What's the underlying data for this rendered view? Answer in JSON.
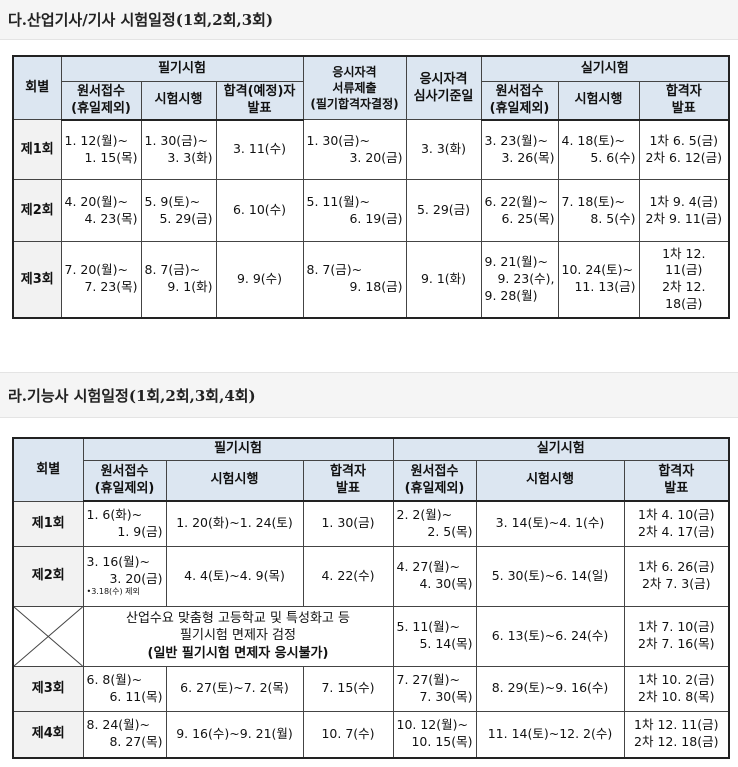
{
  "section1": {
    "title": "다.산업기사/기사 시험일정(1회,2회,3회)",
    "header_top": [
      "회별",
      "필기시험",
      "응시자격\n서류제출\n(필기합격자결정)",
      "응시자격\n심사기준일",
      "실기시험"
    ],
    "header_sub": [
      "원서접수\n(휴일제외)",
      "시험시행",
      "합격(예정)자\n발표",
      "원서접수\n(휴일제외)",
      "시험시행",
      "합격자\n발표"
    ],
    "rows": [
      {
        "round": "제1회",
        "cells": [
          [
            "1. 12(월)~",
            "1. 15(목)"
          ],
          [
            "1. 30(금)~",
            "3. 3(화)"
          ],
          [
            "3. 11(수)"
          ],
          [
            "1. 30(금)~",
            "3. 20(금)"
          ],
          [
            "3. 3(화)"
          ],
          [
            "3. 23(월)~",
            "3. 26(목)"
          ],
          [
            "4. 18(토)~",
            "5. 6(수)"
          ],
          [
            "1차 6. 5(금)",
            "2차 6. 12(금)"
          ]
        ]
      },
      {
        "round": "제2회",
        "cells": [
          [
            "4. 20(월)~",
            "4. 23(목)"
          ],
          [
            "5. 9(토)~",
            "5. 29(금)"
          ],
          [
            "6. 10(수)"
          ],
          [
            "5. 11(월)~",
            "6. 19(금)"
          ],
          [
            "5. 29(금)"
          ],
          [
            "6. 22(월)~",
            "6. 25(목)"
          ],
          [
            "7. 18(토)~",
            "8. 5(수)"
          ],
          [
            "1차 9. 4(금)",
            "2차 9. 11(금)"
          ]
        ]
      },
      {
        "round": "제3회",
        "cells": [
          [
            "7. 20(월)~",
            "7. 23(목)"
          ],
          [
            "8. 7(금)~",
            "9. 1(화)"
          ],
          [
            "9. 9(수)"
          ],
          [
            "8. 7(금)~",
            "9. 18(금)"
          ],
          [
            "9. 1(화)"
          ],
          [
            "9. 21(월)~",
            "9. 23(수),",
            "9. 28(월)"
          ],
          [
            "10. 24(토)~",
            "11. 13(금)"
          ],
          [
            "1차 12. 11(금)",
            "2차 12. 18(금)"
          ]
        ]
      }
    ]
  },
  "section2": {
    "title": "라.기능사 시험일정(1회,2회,3회,4회)",
    "header_top": [
      "회별",
      "필기시험",
      "실기시험"
    ],
    "header_sub": [
      "원서접수\n(휴일제외)",
      "시험시행",
      "합격자\n발표",
      "원서접수\n(휴일제외)",
      "시험시행",
      "합격자\n발표"
    ],
    "rows": [
      {
        "round": "제1회",
        "cells": [
          [
            "1. 6(화)~",
            "1. 9(금)"
          ],
          [
            "1. 20(화)~1. 24(토)"
          ],
          [
            "1. 30(금)"
          ],
          [
            "2. 2(월)~",
            "2. 5(목)"
          ],
          [
            "3. 14(토)~4. 1(수)"
          ],
          [
            "1차 4. 10(금)",
            "2차 4. 17(금)"
          ]
        ]
      },
      {
        "round": "제2회",
        "cells": [
          [
            "3. 16(월)~",
            "3. 20(금)"
          ],
          [
            "4. 4(토)~4. 9(목)"
          ],
          [
            "4. 22(수)"
          ],
          [
            "4. 27(월)~",
            "4. 30(목)"
          ],
          [
            "5. 30(토)~6. 14(일)"
          ],
          [
            "1차 6. 26(금)",
            "2차 7. 3(금)"
          ]
        ],
        "note": "•3.18(수) 제외"
      },
      {
        "round": "",
        "special": [
          "산업수요 맞춤형 고등학교 및 특성화고 등",
          "필기시험 면제자 검정",
          "(일반 필기시험 면제자 응시불가)"
        ],
        "cells": [
          [
            "5. 11(월)~",
            "5. 14(목)"
          ],
          [
            "6. 13(토)~6. 24(수)"
          ],
          [
            "1차 7. 10(금)",
            "2차 7. 16(목)"
          ]
        ]
      },
      {
        "round": "제3회",
        "cells": [
          [
            "6. 8(월)~",
            "6. 11(목)"
          ],
          [
            "6. 27(토)~7. 2(목)"
          ],
          [
            "7. 15(수)"
          ],
          [
            "7. 27(월)~",
            "7. 30(목)"
          ],
          [
            "8. 29(토)~9. 16(수)"
          ],
          [
            "1차 10. 2(금)",
            "2차 10. 8(목)"
          ]
        ]
      },
      {
        "round": "제4회",
        "cells": [
          [
            "8. 24(월)~",
            "8. 27(목)"
          ],
          [
            "9. 16(수)~9. 21(월)"
          ],
          [
            "10. 7(수)"
          ],
          [
            "10. 12(월)~",
            "10. 15(목)"
          ],
          [
            "11. 14(토)~12. 2(수)"
          ],
          [
            "1차 12. 11(금)",
            "2차 12. 18(금)"
          ]
        ]
      }
    ]
  }
}
